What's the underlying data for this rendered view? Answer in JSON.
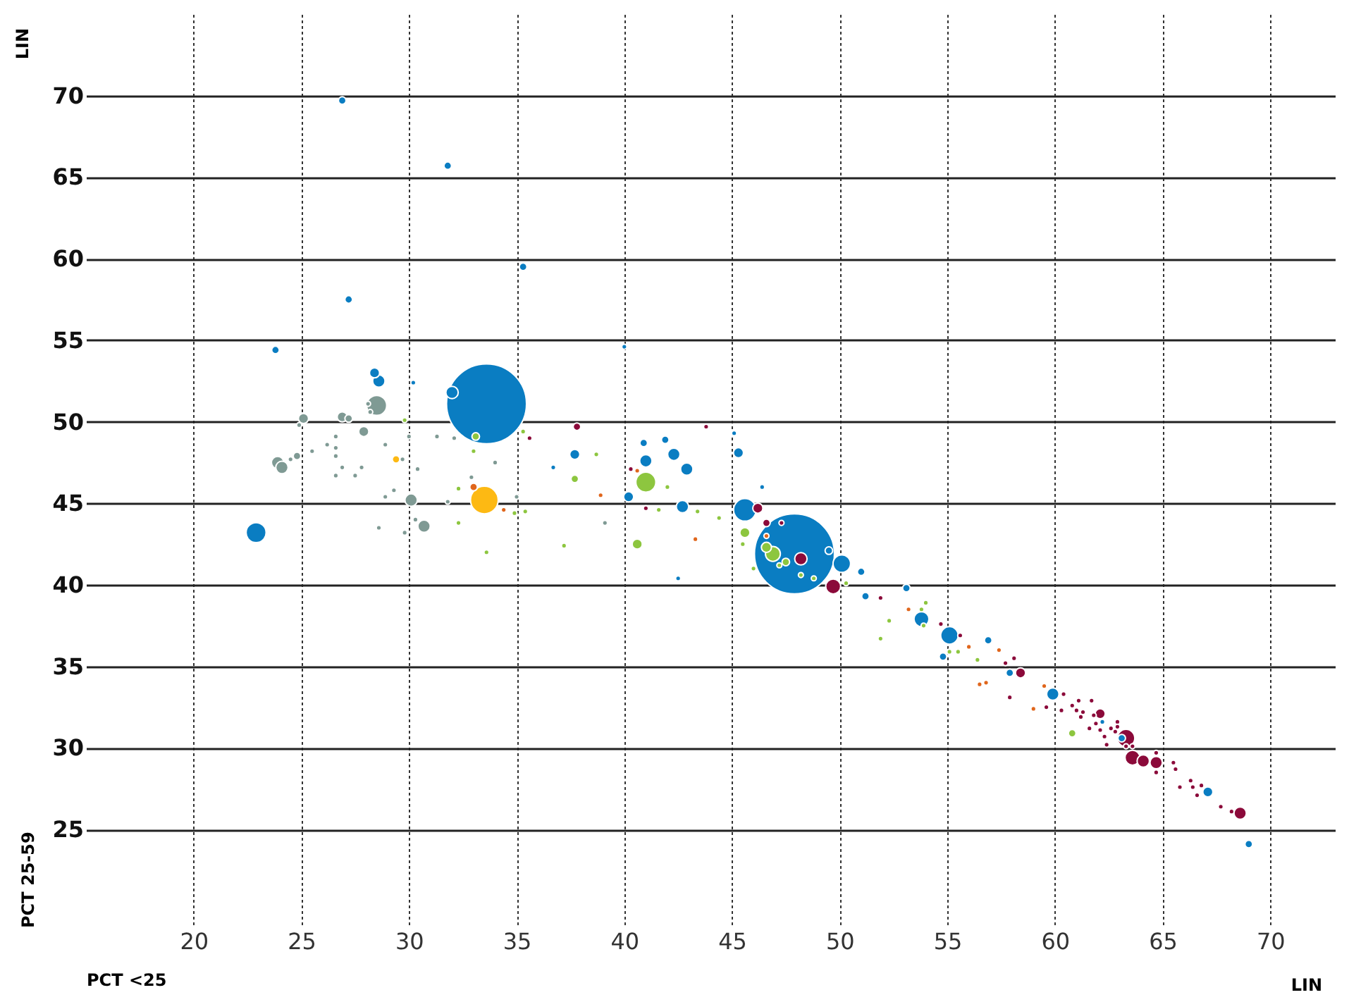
{
  "chart_data": {
    "type": "bubble",
    "xlabel": "PCT <25",
    "ylabel": "PCT 25-59",
    "annotations": [
      "LIN",
      "LIN"
    ],
    "xlim": [
      15,
      73
    ],
    "ylim": [
      19,
      75
    ],
    "xticks": [
      20,
      25,
      30,
      35,
      40,
      45,
      50,
      55,
      60,
      65,
      70
    ],
    "yticks": [
      25,
      30,
      35,
      40,
      45,
      50,
      55,
      60,
      65,
      70
    ],
    "grid": true,
    "legend": false,
    "series": [
      {
        "color": "#0a7dc2",
        "x": [
          26.9,
          31.8,
          35.3,
          27.2,
          23.8,
          40.0,
          28.4,
          28.6,
          30.2,
          32.0,
          33.6,
          22.9,
          40.9,
          41.9,
          41.0,
          42.3,
          42.9,
          37.7,
          36.7,
          40.2,
          42.7,
          42.5,
          45.1,
          45.3,
          46.4,
          45.6,
          47.9,
          49.5,
          50.1,
          51.0,
          51.2,
          53.1,
          53.8,
          55.1,
          54.8,
          56.9,
          57.9,
          59.9,
          62.2,
          63.1,
          67.1,
          69.0
        ],
        "values": [
          69.7,
          65.7,
          59.5,
          57.5,
          54.4,
          54.6,
          53.0,
          52.5,
          52.4,
          51.8,
          51.1,
          43.2,
          48.7,
          48.9,
          47.6,
          48.0,
          47.1,
          48.0,
          47.2,
          45.4,
          44.8,
          40.4,
          49.3,
          48.1,
          46.0,
          44.6,
          41.9,
          42.1,
          41.3,
          40.8,
          39.3,
          39.8,
          37.9,
          36.9,
          35.6,
          36.6,
          34.6,
          33.3,
          31.6,
          30.6,
          27.3,
          24.1
        ],
        "sizes": [
          0.009,
          0.009,
          0.009,
          0.009,
          0.009,
          0.004,
          0.016,
          0.024,
          0.004,
          0.024,
          1,
          0.0625,
          0.009,
          0.009,
          0.024,
          0.024,
          0.024,
          0.016,
          0.004,
          0.016,
          0.024,
          0.004,
          0.004,
          0.016,
          0.004,
          0.08,
          1,
          0.009,
          0.048,
          0.009,
          0.009,
          0.009,
          0.035,
          0.048,
          0.009,
          0.009,
          0.009,
          0.024,
          0.004,
          0.009,
          0.016,
          0.009
        ]
      },
      {
        "color": "#7f9a94",
        "x": [
          25.1,
          24.9,
          26.9,
          27.2,
          28.5,
          28.1,
          28.2,
          27.9,
          26.6,
          26.2,
          26.6,
          26.6,
          25.5,
          24.8,
          24.5,
          23.9,
          24.1,
          26.9,
          27.8,
          26.6,
          27.5,
          28.9,
          30.0,
          31.3,
          32.1,
          30.4,
          29.7,
          29.3,
          28.9,
          30.1,
          31.8,
          32.9,
          34.0,
          30.3,
          30.7,
          28.6,
          29.8,
          35.0,
          39.1
        ],
        "values": [
          50.2,
          49.8,
          50.3,
          50.2,
          51.0,
          51.1,
          50.6,
          49.4,
          49.1,
          48.6,
          48.4,
          47.9,
          48.2,
          47.9,
          47.7,
          47.5,
          47.2,
          47.2,
          47.2,
          46.7,
          46.7,
          48.6,
          49.1,
          49.1,
          49.0,
          47.1,
          47.7,
          45.8,
          45.4,
          45.2,
          45.1,
          46.6,
          47.5,
          44.0,
          43.6,
          43.5,
          43.2,
          45.4,
          43.8
        ],
        "sizes": [
          0.016,
          0.004,
          0.016,
          0.009,
          0.0625,
          0.004,
          0.004,
          0.016,
          0.004,
          0.004,
          0.004,
          0.004,
          0.004,
          0.009,
          0.004,
          0.024,
          0.024,
          0.004,
          0.004,
          0.004,
          0.004,
          0.004,
          0.004,
          0.004,
          0.004,
          0.004,
          0.004,
          0.004,
          0.004,
          0.024,
          0.004,
          0.004,
          0.004,
          0.004,
          0.024,
          0.004,
          0.004,
          0.004,
          0.004
        ]
      },
      {
        "color": "#fdb913",
        "x": [
          33.5,
          29.4
        ],
        "values": [
          45.2,
          47.7
        ],
        "sizes": [
          0.12,
          0.009
        ]
      },
      {
        "color": "#8dc63f",
        "x": [
          29.8,
          33.1,
          33.0,
          32.3,
          32.3,
          33.6,
          35.3,
          38.7,
          37.7,
          35.4,
          34.9,
          37.2,
          41.0,
          42.0,
          41.6,
          40.6,
          43.4,
          44.4,
          45.6,
          45.5,
          46.0,
          46.9,
          46.6,
          47.5,
          47.2,
          48.2,
          48.8,
          50.3,
          52.3,
          51.9,
          53.8,
          54.0,
          53.9,
          55.1,
          55.5,
          56.4,
          60.8
        ],
        "values": [
          50.1,
          49.1,
          48.2,
          45.9,
          43.8,
          42.0,
          49.4,
          48.0,
          46.5,
          44.5,
          44.4,
          42.4,
          46.3,
          46.0,
          44.6,
          42.5,
          44.5,
          44.1,
          43.2,
          42.5,
          41.0,
          41.9,
          42.3,
          41.4,
          41.2,
          40.6,
          40.4,
          40.1,
          37.8,
          36.7,
          38.5,
          38.9,
          37.5,
          35.9,
          35.9,
          35.4,
          30.9
        ],
        "sizes": [
          0.004,
          0.009,
          0.004,
          0.004,
          0.004,
          0.004,
          0.004,
          0.004,
          0.009,
          0.004,
          0.004,
          0.004,
          0.0625,
          0.004,
          0.004,
          0.016,
          0.004,
          0.004,
          0.016,
          0.004,
          0.004,
          0.035,
          0.016,
          0.009,
          0.004,
          0.004,
          0.004,
          0.004,
          0.004,
          0.004,
          0.004,
          0.004,
          0.004,
          0.004,
          0.004,
          0.004,
          0.009
        ]
      },
      {
        "color": "#8b0a3a",
        "x": [
          37.8,
          35.6,
          43.8,
          40.3,
          41.0,
          46.2,
          46.6,
          47.3,
          48.2,
          49.7,
          51.9,
          54.7,
          55.6,
          57.7,
          58.1,
          58.4,
          57.9,
          59.6,
          60.4,
          60.3,
          60.8,
          61.1,
          61.0,
          61.2,
          61.3,
          61.7,
          62.1,
          61.8,
          61.9,
          61.6,
          62.1,
          62.3,
          62.4,
          62.6,
          62.9,
          62.9,
          62.8,
          63.3,
          63.6,
          63.3,
          63.6,
          64.1,
          64.7,
          64.7,
          64.7,
          65.5,
          65.6,
          65.8,
          66.3,
          66.4,
          66.8,
          66.6,
          67.7,
          68.2,
          68.6
        ],
        "values": [
          49.7,
          49.0,
          49.7,
          47.1,
          44.7,
          44.7,
          43.8,
          43.8,
          41.6,
          39.9,
          39.2,
          37.6,
          36.9,
          35.2,
          35.5,
          34.6,
          33.1,
          32.5,
          33.3,
          32.3,
          32.6,
          32.9,
          32.3,
          31.9,
          32.2,
          32.9,
          32.1,
          32.0,
          31.5,
          31.2,
          31.1,
          30.7,
          30.2,
          31.2,
          31.6,
          31.3,
          31.0,
          30.6,
          30.1,
          30.1,
          29.4,
          29.2,
          29.1,
          29.7,
          28.5,
          29.1,
          28.7,
          27.6,
          28.0,
          27.6,
          27.7,
          27.1,
          26.4,
          26.1,
          26.0
        ],
        "sizes": [
          0.009,
          0.004,
          0.004,
          0.004,
          0.004,
          0.016,
          0.009,
          0.004,
          0.024,
          0.035,
          0.004,
          0.004,
          0.004,
          0.004,
          0.004,
          0.016,
          0.004,
          0.004,
          0.004,
          0.004,
          0.004,
          0.004,
          0.004,
          0.004,
          0.004,
          0.004,
          0.016,
          0.004,
          0.004,
          0.004,
          0.004,
          0.004,
          0.004,
          0.004,
          0.004,
          0.004,
          0.004,
          0.048,
          0.004,
          0.004,
          0.035,
          0.024,
          0.024,
          0.004,
          0.004,
          0.004,
          0.004,
          0.004,
          0.004,
          0.004,
          0.004,
          0.004,
          0.004,
          0.004,
          0.024
        ]
      },
      {
        "color": "#e0661c",
        "x": [
          33.0,
          34.4,
          38.9,
          40.6,
          43.3,
          46.6,
          53.2,
          56.0,
          57.4,
          56.5,
          56.8,
          59.5,
          59.0
        ],
        "values": [
          46.0,
          44.6,
          45.5,
          47.0,
          42.8,
          43.0,
          38.5,
          36.2,
          36.0,
          33.9,
          34.0,
          33.8,
          32.4
        ],
        "sizes": [
          0.009,
          0.004,
          0.004,
          0.004,
          0.004,
          0.004,
          0.004,
          0.004,
          0.004,
          0.004,
          0.004,
          0.004,
          0.004
        ]
      }
    ]
  }
}
